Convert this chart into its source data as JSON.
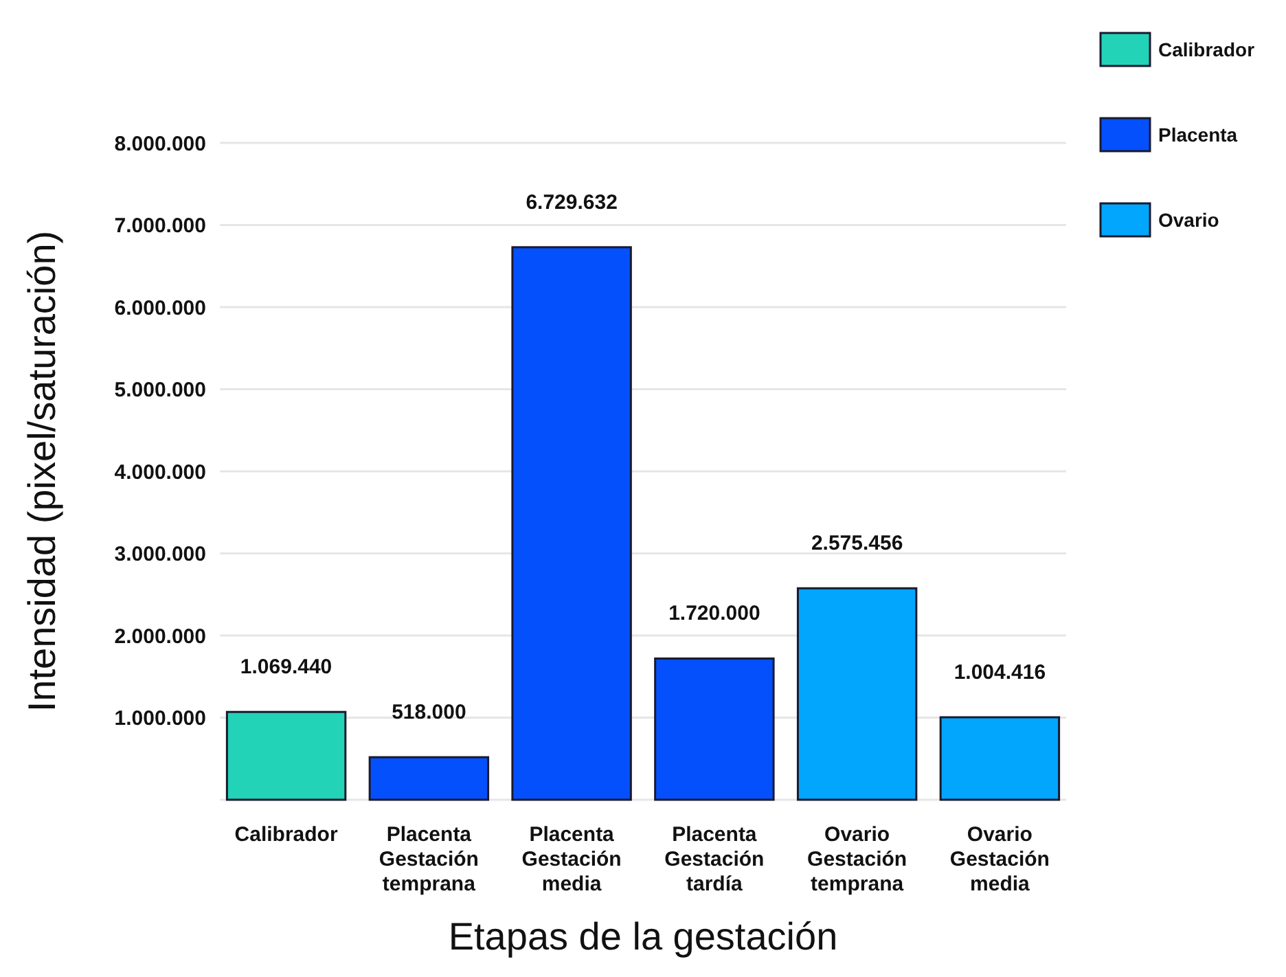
{
  "chart_data": {
    "type": "bar",
    "xlabel": "Etapas de la gestación",
    "ylabel": "Intensidad (pixel/saturación)",
    "categories": [
      "Calibrador",
      "Placenta Gestación temprana",
      "Placenta Gestación media",
      "Placenta Gestación tardía",
      "Ovario Gestación temprana",
      "Ovario Gestación media"
    ],
    "series": [
      {
        "name": "Calibrador",
        "color": "#22d3b8",
        "values": [
          1069440,
          null,
          null,
          null,
          null,
          null
        ],
        "value_labels": [
          "1.069.440",
          null,
          null,
          null,
          null,
          null
        ]
      },
      {
        "name": "Placenta",
        "color": "#0450fc",
        "values": [
          null,
          518000,
          6729632,
          1720000,
          null,
          null
        ],
        "value_labels": [
          null,
          "518.000",
          "6.729.632",
          "1.720.000",
          null,
          null
        ]
      },
      {
        "name": "Ovario",
        "color": "#02a6fd",
        "values": [
          null,
          null,
          null,
          null,
          2575456,
          1004416
        ],
        "value_labels": [
          null,
          null,
          null,
          null,
          "2.575.456",
          "1.004.416"
        ]
      }
    ],
    "ylim": [
      0,
      8000000
    ],
    "yticks": [
      {
        "value": 0,
        "label": null
      },
      {
        "value": 1000000,
        "label": "1.000.000"
      },
      {
        "value": 2000000,
        "label": "2.000.000"
      },
      {
        "value": 3000000,
        "label": "3.000.000"
      },
      {
        "value": 4000000,
        "label": "4.000.000"
      },
      {
        "value": 5000000,
        "label": "5.000.000"
      },
      {
        "value": 6000000,
        "label": "6.000.000"
      },
      {
        "value": 7000000,
        "label": "7.000.000"
      },
      {
        "value": 8000000,
        "label": "8.000.000"
      }
    ],
    "grid": "y",
    "legend": "top right"
  }
}
